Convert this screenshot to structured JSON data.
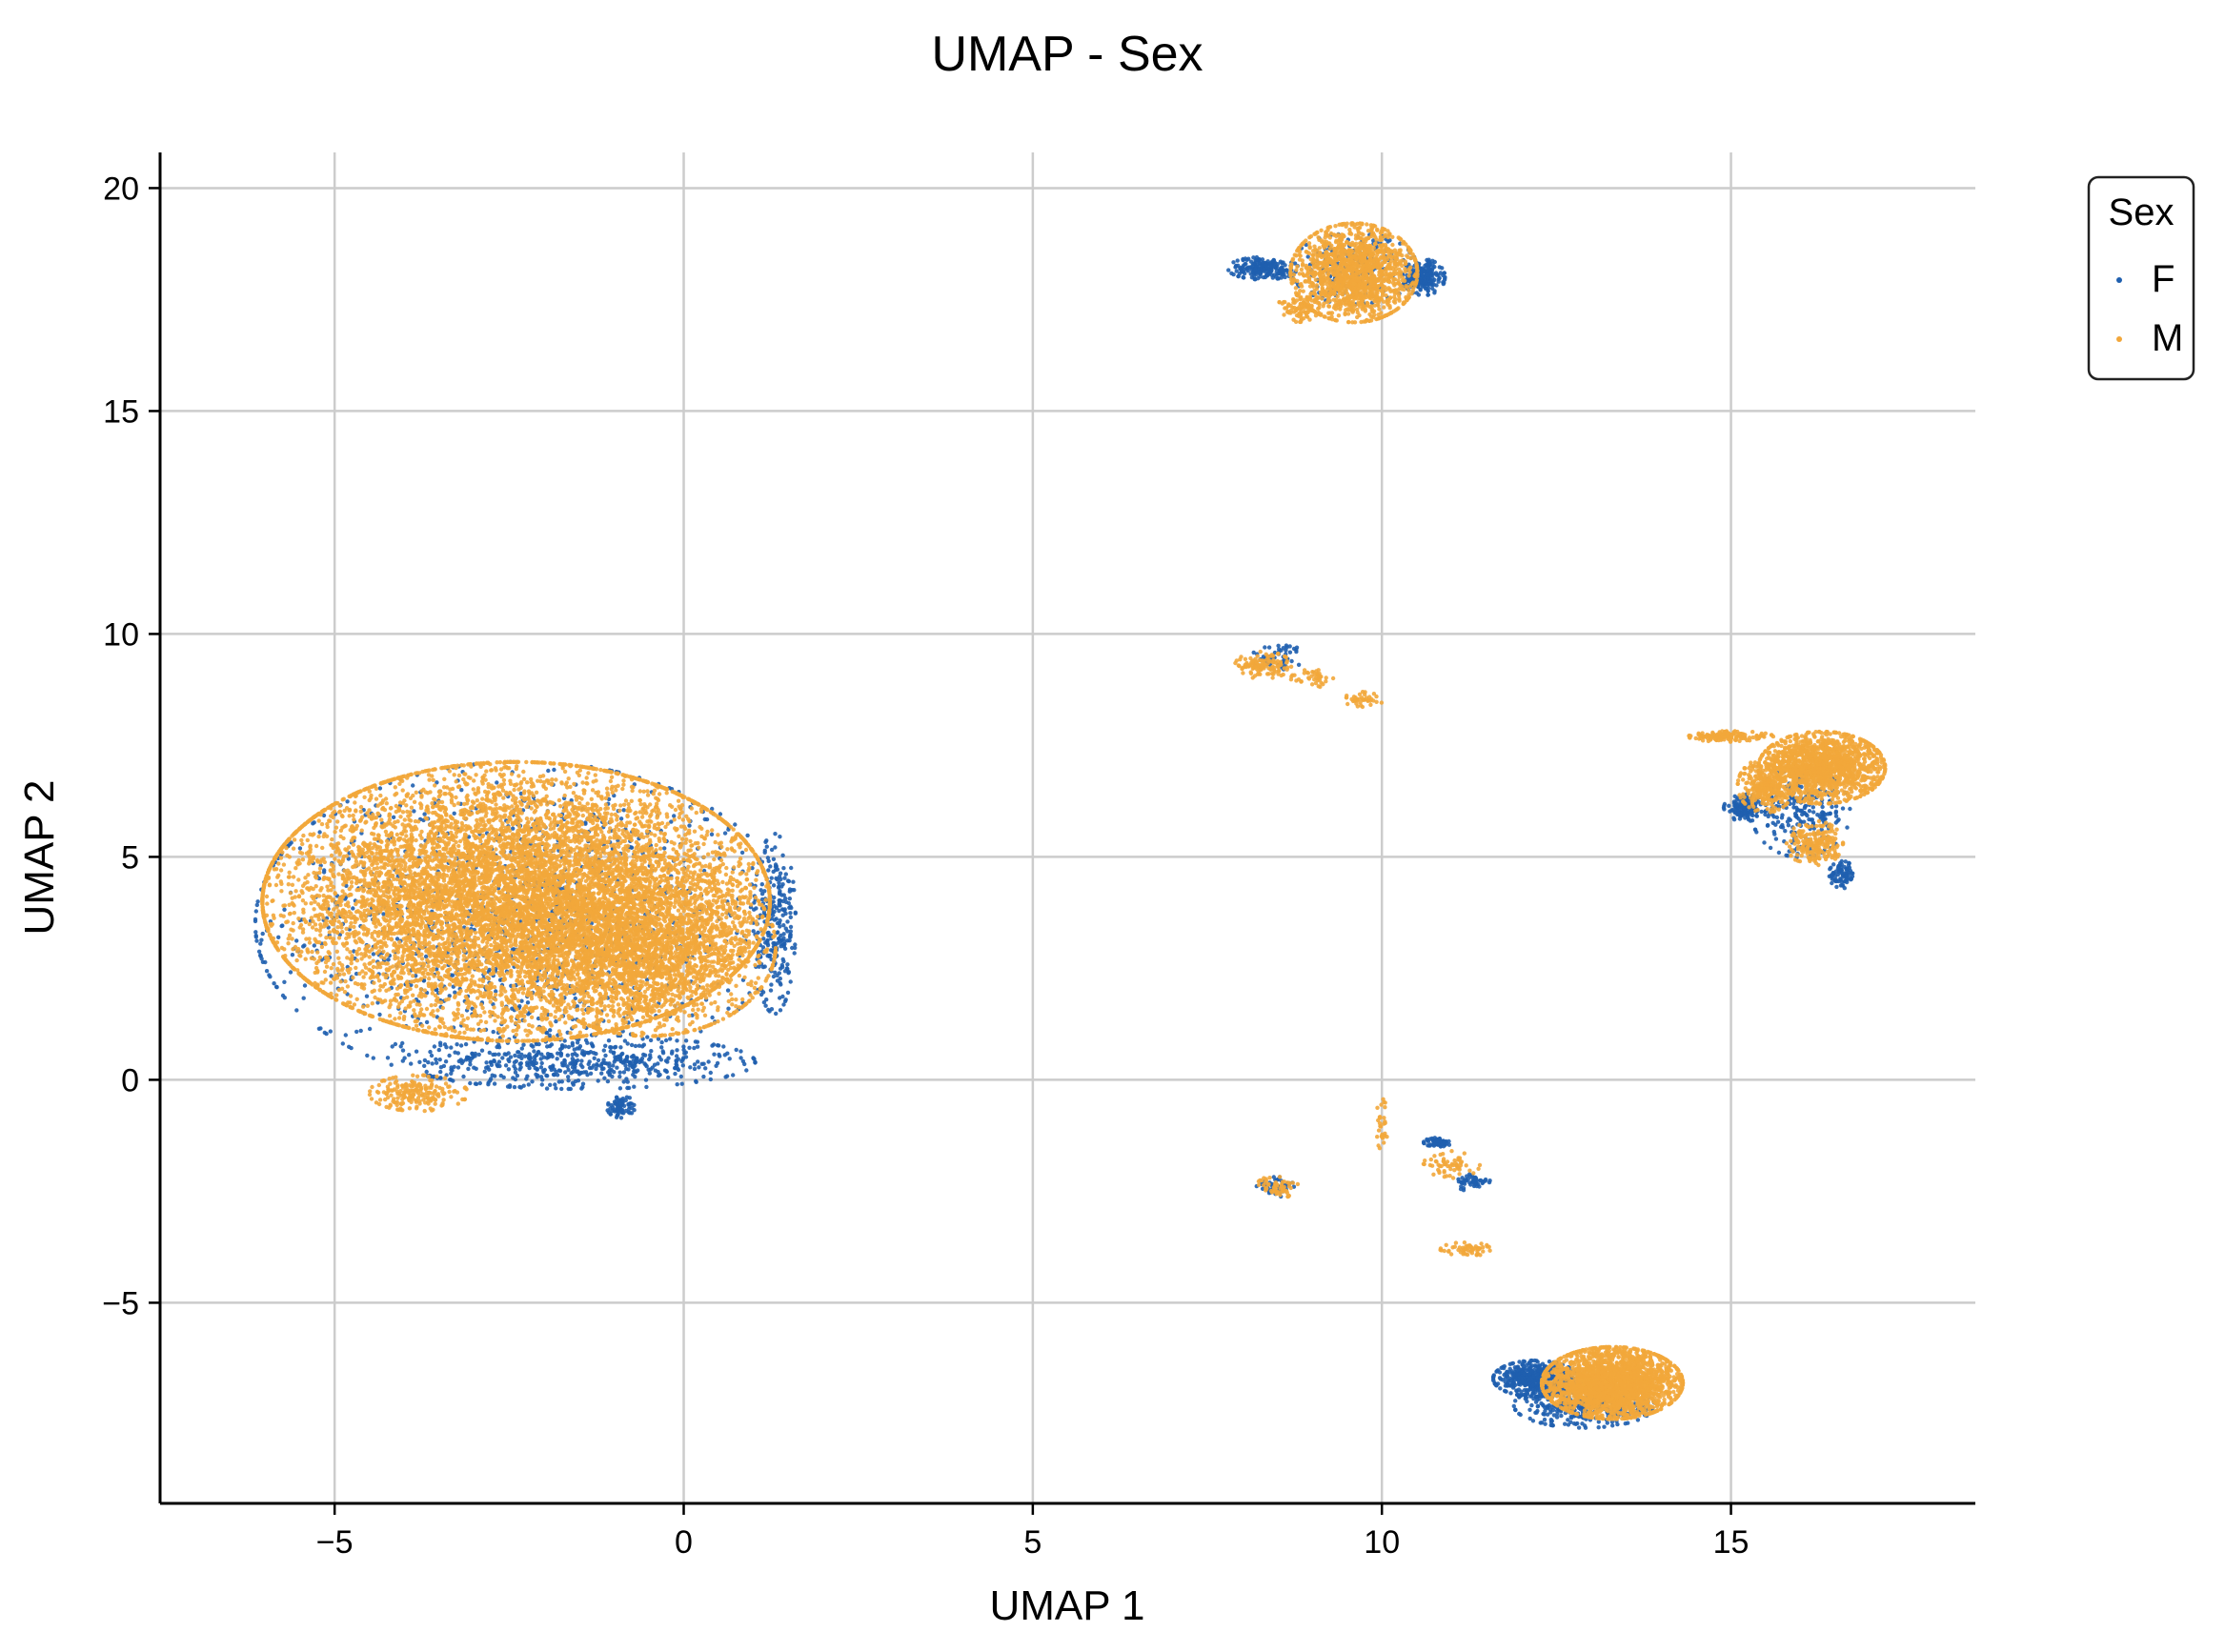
{
  "chart_data": {
    "type": "scatter",
    "title": "UMAP - Sex",
    "xlabel": "UMAP 1",
    "ylabel": "UMAP 2",
    "xlim": [
      -7.5,
      18.5
    ],
    "ylim": [
      -9.5,
      20.8
    ],
    "xticks": [
      -5,
      0,
      5,
      10,
      15
    ],
    "yticks": [
      -5,
      0,
      5,
      10,
      15,
      20
    ],
    "xtick_labels": [
      "−5",
      "0",
      "5",
      "10",
      "15"
    ],
    "ytick_labels": [
      "−5",
      "0",
      "5",
      "10",
      "15",
      "20"
    ],
    "grid": true,
    "legend": {
      "title": "Sex",
      "placement": "outside-top-right",
      "entries": [
        {
          "name": "F",
          "color": "#1f5faf"
        },
        {
          "name": "M",
          "color": "#f2a73b"
        }
      ]
    },
    "series": [
      {
        "name": "F",
        "color": "#1f5faf",
        "clusters": [
          {
            "cx": -2.3,
            "cy": 3.5,
            "rx": 3.8,
            "ry": 3.6,
            "n": 1200
          },
          {
            "cx": -1.5,
            "cy": 0.4,
            "rx": 2.5,
            "ry": 0.6,
            "n": 500
          },
          {
            "cx": 1.3,
            "cy": 3.5,
            "rx": 0.3,
            "ry": 2.0,
            "n": 250
          },
          {
            "cx": -0.9,
            "cy": -0.6,
            "rx": 0.2,
            "ry": 0.25,
            "n": 70
          },
          {
            "cx": 8.3,
            "cy": 18.2,
            "rx": 0.5,
            "ry": 0.25,
            "n": 200
          },
          {
            "cx": 10.6,
            "cy": 18.0,
            "rx": 0.3,
            "ry": 0.4,
            "n": 200
          },
          {
            "cx": 9.6,
            "cy": 18.2,
            "rx": 0.9,
            "ry": 0.8,
            "n": 200
          },
          {
            "cx": 15.2,
            "cy": 6.1,
            "rx": 0.3,
            "ry": 0.3,
            "n": 150
          },
          {
            "cx": 16.0,
            "cy": 6.0,
            "rx": 0.7,
            "ry": 1.0,
            "n": 250
          },
          {
            "cx": 16.6,
            "cy": 4.6,
            "rx": 0.2,
            "ry": 0.3,
            "n": 80
          },
          {
            "cx": 12.2,
            "cy": -6.7,
            "rx": 0.6,
            "ry": 0.4,
            "n": 500
          },
          {
            "cx": 12.9,
            "cy": -7.3,
            "rx": 1.0,
            "ry": 0.5,
            "n": 400
          },
          {
            "cx": 10.8,
            "cy": -1.4,
            "rx": 0.2,
            "ry": 0.1,
            "n": 60
          },
          {
            "cx": 11.3,
            "cy": -2.3,
            "rx": 0.25,
            "ry": 0.2,
            "n": 50
          },
          {
            "cx": 8.5,
            "cy": -2.4,
            "rx": 0.3,
            "ry": 0.25,
            "n": 40
          },
          {
            "cx": 8.5,
            "cy": 9.5,
            "rx": 0.4,
            "ry": 0.3,
            "n": 50
          }
        ]
      },
      {
        "name": "M",
        "color": "#f2a73b",
        "clusters": [
          {
            "cx": -2.4,
            "cy": 4.0,
            "rx": 3.6,
            "ry": 3.1,
            "n": 9000
          },
          {
            "cx": -0.5,
            "cy": 3.0,
            "rx": 1.8,
            "ry": 2.0,
            "n": 2000
          },
          {
            "cx": -3.8,
            "cy": -0.3,
            "rx": 0.7,
            "ry": 0.4,
            "n": 200
          },
          {
            "cx": 9.6,
            "cy": 18.1,
            "rx": 0.9,
            "ry": 1.1,
            "n": 1500
          },
          {
            "cx": 8.8,
            "cy": 17.3,
            "rx": 0.3,
            "ry": 0.3,
            "n": 80
          },
          {
            "cx": 8.3,
            "cy": 9.3,
            "rx": 0.4,
            "ry": 0.3,
            "n": 120
          },
          {
            "cx": 9.0,
            "cy": 9.0,
            "rx": 0.3,
            "ry": 0.2,
            "n": 40
          },
          {
            "cx": 9.7,
            "cy": 8.5,
            "rx": 0.3,
            "ry": 0.2,
            "n": 40
          },
          {
            "cx": 16.3,
            "cy": 7.0,
            "rx": 0.9,
            "ry": 0.8,
            "n": 1500
          },
          {
            "cx": 15.5,
            "cy": 6.6,
            "rx": 0.4,
            "ry": 0.6,
            "n": 300
          },
          {
            "cx": 15.0,
            "cy": 7.7,
            "rx": 0.6,
            "ry": 0.12,
            "n": 150
          },
          {
            "cx": 16.2,
            "cy": 5.3,
            "rx": 0.4,
            "ry": 0.5,
            "n": 200
          },
          {
            "cx": 13.3,
            "cy": -6.8,
            "rx": 1.0,
            "ry": 0.8,
            "n": 2400
          },
          {
            "cx": 8.5,
            "cy": -2.4,
            "rx": 0.3,
            "ry": 0.25,
            "n": 60
          },
          {
            "cx": 11.0,
            "cy": -1.9,
            "rx": 0.4,
            "ry": 0.3,
            "n": 60
          },
          {
            "cx": 11.2,
            "cy": -3.8,
            "rx": 0.4,
            "ry": 0.15,
            "n": 60
          },
          {
            "cx": 10.0,
            "cy": -1.0,
            "rx": 0.08,
            "ry": 0.6,
            "n": 30
          }
        ]
      }
    ]
  }
}
